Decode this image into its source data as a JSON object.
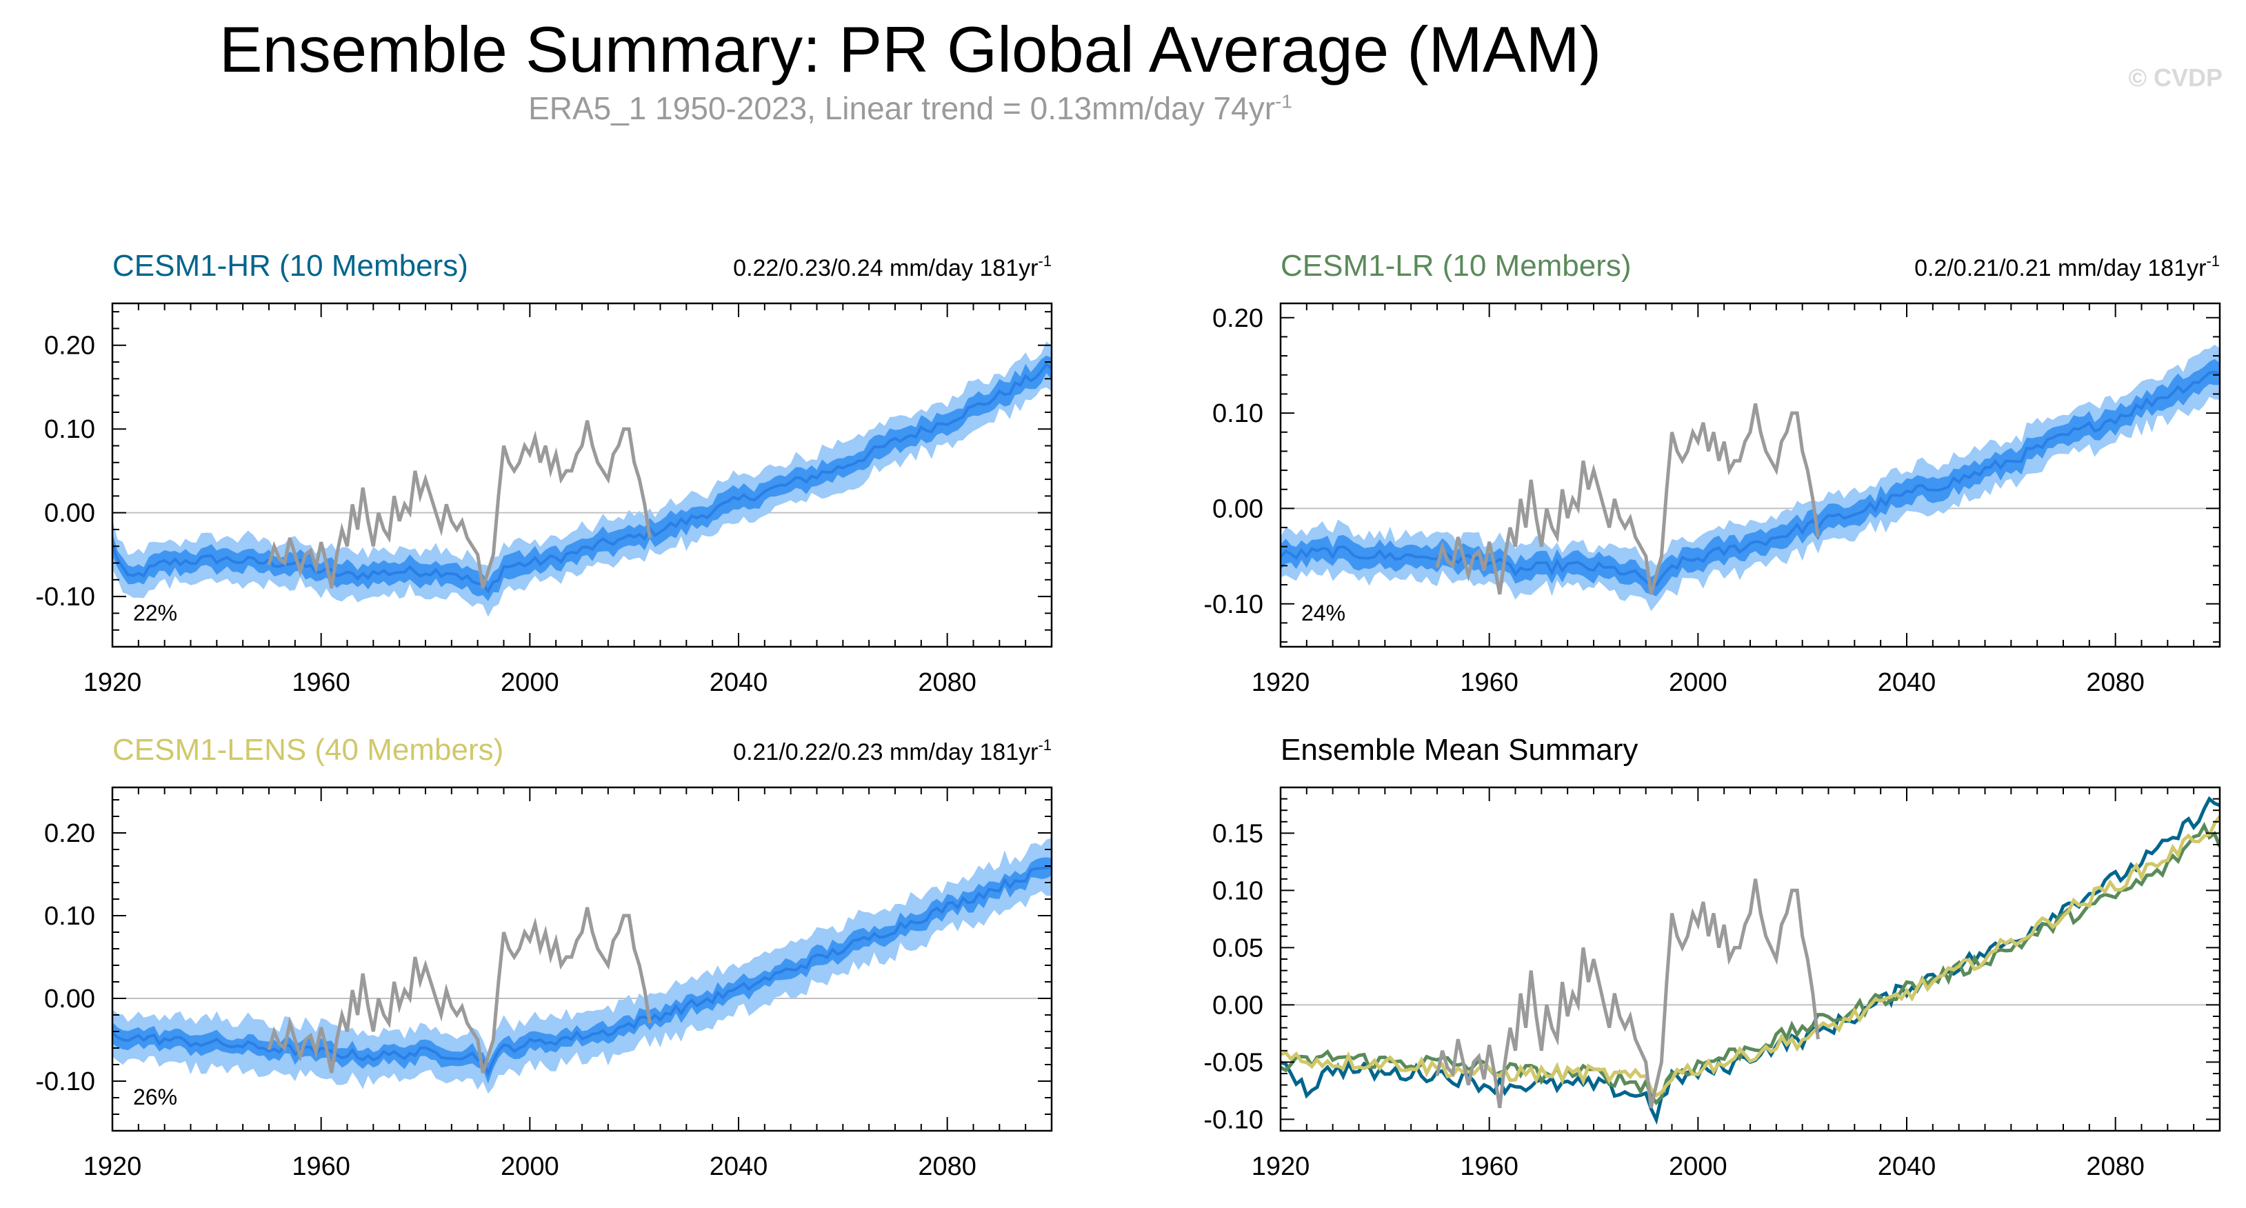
{
  "header": {
    "title": "Ensemble Summary: PR Global Average (MAM)",
    "subtitle": "ERA5_1 1950-2023, Linear trend = 0.13mm/day 74yr",
    "subtitle_sup": "-1",
    "watermark": "© CVDP"
  },
  "colors": {
    "ensemble_mean": "#2a7fe6",
    "ensemble_inner": "#3f96f2",
    "ensemble_outer": "#9ccaf9",
    "observations": "#9a9a9a",
    "cesm1_hr": "#00658d",
    "cesm1_lr": "#5a8a5a",
    "cesm1_lens": "#d0c86a",
    "zero_line": "#c0c0c0"
  },
  "chart_data": [
    {
      "id": "hr",
      "type": "area",
      "title": "CESM1-HR (10 Members)",
      "title_color": "#00658d",
      "trend_text": "0.22/0.23/0.24 mm/day 181yr",
      "trend_sup": "-1",
      "percent_label": "22%",
      "xlim": [
        1920,
        2100
      ],
      "ylim": [
        -0.16,
        0.25
      ],
      "xticks": [
        1920,
        1960,
        2000,
        2040,
        2080
      ],
      "xtick_labels": [
        "1920",
        "1960",
        "2000",
        "2040",
        "2080"
      ],
      "yticks": [
        -0.1,
        0.0,
        0.1,
        0.2
      ],
      "ytick_labels": [
        "-0.10",
        "0.00",
        "0.10",
        "0.20"
      ],
      "zero_line": true,
      "mean_anchors": [
        [
          1920,
          -0.04
        ],
        [
          1923,
          -0.08
        ],
        [
          1930,
          -0.06
        ],
        [
          1940,
          -0.055
        ],
        [
          1950,
          -0.06
        ],
        [
          1955,
          -0.06
        ],
        [
          1960,
          -0.07
        ],
        [
          1965,
          -0.075
        ],
        [
          1975,
          -0.07
        ],
        [
          1985,
          -0.07
        ],
        [
          1990,
          -0.085
        ],
        [
          1992,
          -0.095
        ],
        [
          1995,
          -0.065
        ],
        [
          2005,
          -0.055
        ],
        [
          2015,
          -0.035
        ],
        [
          2020,
          -0.03
        ],
        [
          2030,
          -0.01
        ],
        [
          2040,
          0.015
        ],
        [
          2050,
          0.035
        ],
        [
          2060,
          0.055
        ],
        [
          2070,
          0.085
        ],
        [
          2080,
          0.11
        ],
        [
          2090,
          0.14
        ],
        [
          2100,
          0.175
        ]
      ],
      "inner_halfwidth": 0.012,
      "outer_halfwidth": 0.025
    },
    {
      "id": "lr",
      "type": "area",
      "title": "CESM1-LR (10 Members)",
      "title_color": "#5a8a5a",
      "trend_text": "0.2/0.21/0.21 mm/day 181yr",
      "trend_sup": "-1",
      "percent_label": "24%",
      "xlim": [
        1920,
        2100
      ],
      "ylim": [
        -0.145,
        0.215
      ],
      "xticks": [
        1920,
        1960,
        2000,
        2040,
        2080
      ],
      "xtick_labels": [
        "1920",
        "1960",
        "2000",
        "2040",
        "2080"
      ],
      "yticks": [
        -0.1,
        0.0,
        0.1,
        0.2
      ],
      "ytick_labels": [
        "-0.10",
        "0.00",
        "0.10",
        "0.20"
      ],
      "zero_line": true,
      "mean_anchors": [
        [
          1920,
          -0.05
        ],
        [
          1930,
          -0.045
        ],
        [
          1940,
          -0.05
        ],
        [
          1950,
          -0.05
        ],
        [
          1960,
          -0.055
        ],
        [
          1965,
          -0.065
        ],
        [
          1975,
          -0.06
        ],
        [
          1985,
          -0.065
        ],
        [
          1990,
          -0.075
        ],
        [
          1992,
          -0.085
        ],
        [
          1995,
          -0.06
        ],
        [
          2005,
          -0.045
        ],
        [
          2015,
          -0.03
        ],
        [
          2020,
          -0.02
        ],
        [
          2030,
          -0.005
        ],
        [
          2040,
          0.015
        ],
        [
          2050,
          0.03
        ],
        [
          2060,
          0.05
        ],
        [
          2070,
          0.075
        ],
        [
          2080,
          0.095
        ],
        [
          2090,
          0.12
        ],
        [
          2100,
          0.145
        ]
      ],
      "inner_halfwidth": 0.011,
      "outer_halfwidth": 0.023
    },
    {
      "id": "lens",
      "type": "area",
      "title": "CESM1-LENS (40 Members)",
      "title_color": "#d0c86a",
      "trend_text": "0.21/0.22/0.23 mm/day 181yr",
      "trend_sup": "-1",
      "percent_label": "26%",
      "xlim": [
        1920,
        2100
      ],
      "ylim": [
        -0.16,
        0.255
      ],
      "xticks": [
        1920,
        1960,
        2000,
        2040,
        2080
      ],
      "xtick_labels": [
        "1920",
        "1960",
        "2000",
        "2040",
        "2080"
      ],
      "yticks": [
        -0.1,
        0.0,
        0.1,
        0.2
      ],
      "ytick_labels": [
        "-0.10",
        "0.00",
        "0.10",
        "0.20"
      ],
      "zero_line": true,
      "mean_anchors": [
        [
          1920,
          -0.045
        ],
        [
          1930,
          -0.05
        ],
        [
          1940,
          -0.055
        ],
        [
          1950,
          -0.06
        ],
        [
          1960,
          -0.065
        ],
        [
          1970,
          -0.07
        ],
        [
          1980,
          -0.065
        ],
        [
          1990,
          -0.07
        ],
        [
          1992,
          -0.085
        ],
        [
          1995,
          -0.06
        ],
        [
          2005,
          -0.05
        ],
        [
          2015,
          -0.04
        ],
        [
          2020,
          -0.03
        ],
        [
          2030,
          -0.01
        ],
        [
          2040,
          0.01
        ],
        [
          2050,
          0.035
        ],
        [
          2060,
          0.06
        ],
        [
          2070,
          0.085
        ],
        [
          2080,
          0.11
        ],
        [
          2090,
          0.135
        ],
        [
          2100,
          0.16
        ]
      ],
      "inner_halfwidth": 0.01,
      "outer_halfwidth": 0.028
    },
    {
      "id": "summary",
      "type": "line",
      "title": "Ensemble Mean Summary",
      "title_color": "#000000",
      "xlim": [
        1920,
        2100
      ],
      "ylim": [
        -0.11,
        0.19
      ],
      "xticks": [
        1920,
        1960,
        2000,
        2040,
        2080
      ],
      "xtick_labels": [
        "1920",
        "1960",
        "2000",
        "2040",
        "2080"
      ],
      "yticks": [
        -0.1,
        -0.05,
        0.0,
        0.05,
        0.1,
        0.15
      ],
      "ytick_labels": [
        "-0.10",
        "-0.05",
        "0.00",
        "0.05",
        "0.10",
        "0.15"
      ],
      "zero_line": true,
      "series_anchors": [
        {
          "color": "#00658d",
          "anchors": [
            [
              1920,
              -0.045
            ],
            [
              1925,
              -0.075
            ],
            [
              1930,
              -0.055
            ],
            [
              1940,
              -0.06
            ],
            [
              1950,
              -0.06
            ],
            [
              1960,
              -0.07
            ],
            [
              1970,
              -0.07
            ],
            [
              1980,
              -0.07
            ],
            [
              1990,
              -0.08
            ],
            [
              1992,
              -0.095
            ],
            [
              1995,
              -0.065
            ],
            [
              2005,
              -0.055
            ],
            [
              2015,
              -0.035
            ],
            [
              2020,
              -0.03
            ],
            [
              2030,
              -0.01
            ],
            [
              2040,
              0.015
            ],
            [
              2050,
              0.035
            ],
            [
              2060,
              0.055
            ],
            [
              2070,
              0.085
            ],
            [
              2080,
              0.11
            ],
            [
              2090,
              0.14
            ],
            [
              2098,
              0.175
            ],
            [
              2100,
              0.175
            ]
          ]
        },
        {
          "color": "#5a8a5a",
          "anchors": [
            [
              1920,
              -0.055
            ],
            [
              1930,
              -0.045
            ],
            [
              1940,
              -0.05
            ],
            [
              1950,
              -0.05
            ],
            [
              1960,
              -0.055
            ],
            [
              1970,
              -0.06
            ],
            [
              1980,
              -0.06
            ],
            [
              1990,
              -0.07
            ],
            [
              1992,
              -0.085
            ],
            [
              1995,
              -0.06
            ],
            [
              2005,
              -0.045
            ],
            [
              2015,
              -0.03
            ],
            [
              2020,
              -0.02
            ],
            [
              2030,
              -0.005
            ],
            [
              2040,
              0.015
            ],
            [
              2050,
              0.03
            ],
            [
              2060,
              0.05
            ],
            [
              2070,
              0.075
            ],
            [
              2080,
              0.095
            ],
            [
              2090,
              0.12
            ],
            [
              2097,
              0.155
            ],
            [
              2100,
              0.145
            ]
          ]
        },
        {
          "color": "#d0c86a",
          "anchors": [
            [
              1920,
              -0.045
            ],
            [
              1930,
              -0.05
            ],
            [
              1940,
              -0.05
            ],
            [
              1950,
              -0.055
            ],
            [
              1960,
              -0.06
            ],
            [
              1970,
              -0.06
            ],
            [
              1980,
              -0.06
            ],
            [
              1990,
              -0.065
            ],
            [
              1992,
              -0.08
            ],
            [
              1995,
              -0.06
            ],
            [
              2005,
              -0.05
            ],
            [
              2015,
              -0.035
            ],
            [
              2020,
              -0.03
            ],
            [
              2030,
              -0.01
            ],
            [
              2040,
              0.01
            ],
            [
              2050,
              0.03
            ],
            [
              2060,
              0.055
            ],
            [
              2070,
              0.08
            ],
            [
              2080,
              0.105
            ],
            [
              2090,
              0.13
            ],
            [
              2100,
              0.16
            ]
          ]
        }
      ]
    }
  ],
  "observations": {
    "name": "ERA5_1",
    "years": [
      1950,
      2023
    ],
    "values": [
      -0.062,
      -0.04,
      -0.055,
      -0.06,
      -0.03,
      -0.05,
      -0.07,
      -0.05,
      -0.045,
      -0.065,
      -0.035,
      -0.06,
      -0.09,
      -0.05,
      -0.02,
      -0.04,
      0.01,
      -0.02,
      0.03,
      -0.01,
      -0.04,
      0.0,
      -0.02,
      -0.03,
      0.02,
      -0.01,
      0.01,
      0.0,
      0.05,
      0.02,
      0.04,
      0.02,
      0.0,
      -0.02,
      0.01,
      -0.01,
      -0.02,
      -0.01,
      -0.03,
      -0.04,
      -0.05,
      -0.09,
      -0.07,
      -0.05,
      0.02,
      0.08,
      0.06,
      0.05,
      0.06,
      0.08,
      0.07,
      0.09,
      0.06,
      0.08,
      0.05,
      0.07,
      0.04,
      0.05,
      0.05,
      0.07,
      0.08,
      0.11,
      0.08,
      0.06,
      0.05,
      0.04,
      0.07,
      0.08,
      0.1,
      0.1,
      0.06,
      0.04,
      0.01,
      -0.03
    ]
  }
}
